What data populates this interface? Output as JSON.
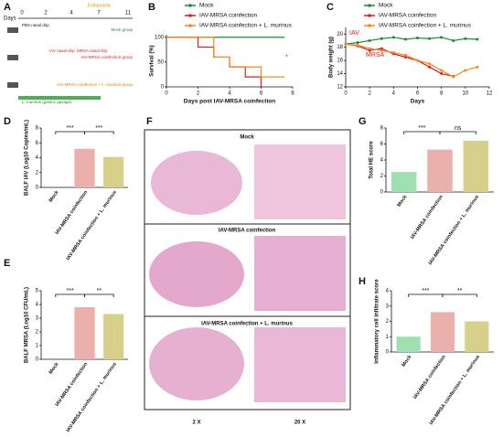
{
  "schematic": {
    "panel": "A",
    "days_label": "Days",
    "days": [
      "0",
      "2",
      "4",
      "7",
      "11"
    ],
    "euthanasia": "Euthanasia",
    "steps": [
      "PBS nasal drip",
      "IAV nasal drip",
      "MRSA nasal drip",
      "L. murinus (gastric gavage)"
    ],
    "groups": [
      "Mock group",
      "IAV-MRSA coinfection group",
      "IAV-MRSA coinfection + L. murinus group"
    ]
  },
  "histology": {
    "panel": "F",
    "rows": [
      "Mock",
      "IAV-MRSA coinfection",
      "IAV-MRSA coinfection + L. murinus"
    ],
    "magnifications": [
      "2 X",
      "20 X"
    ]
  },
  "chart_data": [
    {
      "type": "line",
      "panel": "B",
      "step": true,
      "ylabel": "Survival (%)",
      "xlabel": "Days post IAV-MRSA coinfection",
      "x": [
        0,
        2,
        3,
        4,
        5,
        6,
        7.5
      ],
      "xlim": [
        0,
        8
      ],
      "xticks": [
        0,
        2,
        4,
        6,
        8
      ],
      "ylim": [
        0,
        105
      ],
      "yticks": [
        0,
        50,
        100
      ],
      "legend": "top",
      "annotations": [
        "*"
      ],
      "series": [
        {
          "name": "Mock",
          "color": "#1a8a3a",
          "values": [
            100,
            100,
            100,
            100,
            100,
            100,
            100
          ]
        },
        {
          "name": "IAV-MRSA coinfection",
          "color": "#d42020",
          "values": [
            100,
            80,
            60,
            40,
            20,
            0,
            null
          ]
        },
        {
          "name": "IAV-MRSA coinfection + L. murinus",
          "color": "#f08c1c",
          "values": [
            100,
            100,
            60,
            40,
            40,
            20,
            20
          ]
        }
      ]
    },
    {
      "type": "line",
      "panel": "C",
      "ylabel": "Body weight (g)",
      "xlabel": "Days",
      "x": [
        0,
        1,
        2,
        3,
        4,
        5,
        6,
        7,
        8,
        9,
        10,
        11
      ],
      "xlim": [
        0,
        12
      ],
      "xticks": [
        0,
        2,
        4,
        6,
        8,
        10,
        12
      ],
      "ylim": [
        12,
        21
      ],
      "yticks": [
        12,
        14,
        16,
        18,
        20
      ],
      "legend": "top",
      "annotations": [
        "IAV",
        "MRSA"
      ],
      "series": [
        {
          "name": "Mock",
          "color": "#1a8a3a",
          "values": [
            18.5,
            18.7,
            19,
            19.3,
            19.5,
            19.2,
            19.4,
            19.3,
            19.5,
            19,
            19.3,
            19.2
          ]
        },
        {
          "name": "IAV-MRSA coinfection",
          "color": "#d42020",
          "values": [
            18.5,
            18.2,
            17.5,
            17.8,
            17,
            16.5,
            16,
            15,
            14,
            13.6,
            null,
            null
          ]
        },
        {
          "name": "IAV-MRSA coinfection + L. murinus",
          "color": "#f08c1c",
          "values": [
            18.5,
            18.3,
            17.8,
            17.5,
            17.2,
            16.8,
            16,
            15.5,
            14.5,
            13.5,
            14.5,
            15
          ]
        }
      ]
    },
    {
      "type": "bar",
      "panel": "D",
      "ylabel": "BALF IAV (Log10 Copies/mL)",
      "categories": [
        "Mock",
        "IAV-MRSA coinfection",
        "IAV-MRSA coinfection + L. murinus"
      ],
      "values": [
        0,
        5.2,
        4.1
      ],
      "colors": [
        "#9fe0b0",
        "#eab0ac",
        "#d6d08a"
      ],
      "ylim": [
        0,
        8
      ],
      "yticks": [
        0,
        2,
        4,
        6,
        8
      ],
      "annotations": [
        "***",
        "***"
      ]
    },
    {
      "type": "bar",
      "panel": "E",
      "ylabel": "BALF MRSA (Log10 CFU/mL)",
      "categories": [
        "Mock",
        "IAV-MRSA coinfection",
        "IAV-MRSA coinfection + L. murinus"
      ],
      "values": [
        0,
        3.8,
        3.3
      ],
      "colors": [
        "#9fe0b0",
        "#eab0ac",
        "#d6d08a"
      ],
      "ylim": [
        0,
        5
      ],
      "yticks": [
        0,
        1,
        2,
        3,
        4,
        5
      ],
      "annotations": [
        "***",
        "**"
      ]
    },
    {
      "type": "bar",
      "panel": "G",
      "ylabel": "Total HE score",
      "categories": [
        "Mock",
        "IAV-MRSA coinfection",
        "IAV-MRSA coinfection + L. murinus"
      ],
      "values": [
        2.5,
        5.3,
        6.4
      ],
      "colors": [
        "#9fe0b0",
        "#eab0ac",
        "#d6d08a"
      ],
      "ylim": [
        0,
        8
      ],
      "yticks": [
        0,
        2,
        4,
        6,
        8
      ],
      "annotations": [
        "***",
        "ns"
      ]
    },
    {
      "type": "bar",
      "panel": "H",
      "ylabel": "Inflammatory cell infiltrate score",
      "categories": [
        "Mock",
        "IAV-MRSA coinfection",
        "IAV-MRSA coinfection + L. murinus"
      ],
      "values": [
        1,
        2.6,
        2
      ],
      "colors": [
        "#9fe0b0",
        "#eab0ac",
        "#d6d08a"
      ],
      "ylim": [
        0,
        4
      ],
      "yticks": [
        0,
        1,
        2,
        3,
        4
      ],
      "annotations": [
        "***",
        "**"
      ]
    }
  ]
}
